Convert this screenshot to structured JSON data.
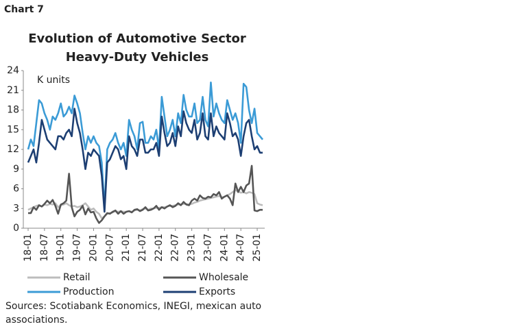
{
  "header": "Chart 7",
  "source": "Sources: Scotiabank Economics, INEGI, mexican auto associations.",
  "chart_data": {
    "type": "line",
    "title": [
      "Evolution of Automotive Sector",
      "Heavy-Duty Vehicles"
    ],
    "annotation": "K units",
    "ylim": [
      0,
      24
    ],
    "yticks": [
      0,
      3,
      6,
      9,
      12,
      15,
      18,
      21,
      24
    ],
    "grid": false,
    "legend": "bottom",
    "categories": [
      "18-01",
      null,
      null,
      null,
      null,
      null,
      "18-07",
      null,
      null,
      null,
      null,
      null,
      "19-01",
      null,
      null,
      null,
      null,
      null,
      "19-07",
      null,
      null,
      null,
      null,
      null,
      "20-01",
      null,
      null,
      null,
      null,
      null,
      "20-07",
      null,
      null,
      null,
      null,
      null,
      "21-01",
      null,
      null,
      null,
      null,
      null,
      "21-07",
      null,
      null,
      null,
      null,
      null,
      "22-01",
      null,
      null,
      null,
      null,
      null,
      "22-07",
      null,
      null,
      null,
      null,
      null,
      "23-01",
      null,
      null,
      null,
      null,
      null,
      "23-07",
      null,
      null,
      null,
      null,
      null,
      "24-01",
      null,
      null,
      null,
      null,
      null,
      "24-07",
      null,
      null,
      null,
      null,
      null,
      "25-01",
      null,
      null
    ],
    "series": [
      {
        "name": "Production",
        "color": "#3b9bd6",
        "values": [
          12,
          13.5,
          12.5,
          16,
          19.5,
          19,
          17.5,
          16.5,
          15,
          17,
          16.5,
          17.5,
          19,
          17,
          17.5,
          18.5,
          17.5,
          20.2,
          19,
          17.5,
          14.5,
          12,
          14,
          13,
          14,
          13,
          12.5,
          10,
          3,
          12,
          13,
          13.5,
          14.5,
          13,
          12,
          13,
          11,
          16.5,
          15,
          14,
          12,
          16,
          16.2,
          13,
          13,
          14,
          13.5,
          15,
          12,
          20,
          17,
          14,
          15,
          16.5,
          14,
          17.5,
          16,
          20.3,
          18,
          17,
          17,
          19,
          16,
          16.5,
          20,
          16.5,
          15.5,
          22.2,
          17,
          19,
          17.5,
          16.5,
          16,
          19.5,
          18,
          16.5,
          17.5,
          16,
          13,
          22,
          21.5,
          18,
          16,
          18.2,
          14.5,
          14,
          13.5
        ]
      },
      {
        "name": "Exports",
        "color": "#1d3f73",
        "values": [
          10,
          11,
          12,
          10,
          13,
          16.5,
          15,
          13.5,
          13,
          12.5,
          12,
          14,
          14,
          13.5,
          14.5,
          15,
          14,
          18.2,
          16,
          14.5,
          12,
          9,
          11.5,
          11,
          12,
          11.5,
          11,
          8,
          2.5,
          10,
          10.5,
          11.5,
          12.5,
          12,
          10.5,
          11,
          9,
          14,
          12.5,
          12,
          11,
          13.5,
          13.5,
          11.5,
          11.5,
          12,
          12,
          13,
          11,
          17,
          14.5,
          12.5,
          13,
          14.5,
          12.5,
          15.5,
          14,
          17.8,
          16,
          15,
          14.5,
          16.5,
          13.5,
          14.5,
          17.5,
          14,
          13.5,
          17.5,
          14,
          15.5,
          14.5,
          14,
          13.5,
          17.5,
          16,
          14,
          14.5,
          13.5,
          11,
          14,
          16,
          16.5,
          14,
          12,
          12.5,
          11.5,
          11.5
        ]
      },
      {
        "name": "Retail",
        "color": "#bcbcbc",
        "values": [
          2.8,
          3,
          3.2,
          3.4,
          3.5,
          3.3,
          3.6,
          3.5,
          3.7,
          3.6,
          3.8,
          3.2,
          3.5,
          3.6,
          3.8,
          3.5,
          3.3,
          3.4,
          3.2,
          3.3,
          3.5,
          3.8,
          3.3,
          2.8,
          3,
          2.5,
          2.2,
          1.5,
          1.8,
          2.2,
          2.3,
          2.4,
          2.6,
          2.5,
          2.6,
          2.5,
          2.5,
          2.6,
          2.5,
          2.7,
          2.8,
          2.7,
          2.9,
          3,
          2.8,
          3,
          3,
          3.1,
          3.1,
          3.2,
          3.2,
          3.3,
          3.4,
          3.4,
          3.5,
          3.6,
          3.6,
          3.7,
          3.7,
          3.6,
          3.7,
          3.9,
          4,
          4.2,
          4.3,
          4.4,
          4.5,
          4.6,
          4.7,
          4.8,
          4.9,
          4.7,
          4.8,
          5,
          5.2,
          5.5,
          5.8,
          5.6,
          5.4,
          5.5,
          5.3,
          5.5,
          5.4,
          5.2,
          3.8,
          3.6,
          3.5
        ]
      },
      {
        "name": "Wholesale",
        "color": "#555555",
        "values": [
          2.3,
          2.3,
          3.2,
          2.8,
          3.5,
          3.3,
          3.7,
          4.2,
          3.8,
          4.3,
          3.4,
          2.2,
          3.6,
          3.8,
          4.2,
          8.3,
          3.2,
          1.8,
          2.5,
          2.8,
          3.4,
          2.1,
          3,
          2.4,
          2.5,
          1.5,
          0.8,
          1.2,
          1.8,
          2.3,
          2.2,
          2.5,
          2.7,
          2.2,
          2.6,
          2.2,
          2.5,
          2.6,
          2.4,
          2.8,
          2.9,
          2.6,
          2.8,
          3.2,
          2.7,
          2.8,
          3,
          3.4,
          2.8,
          3.2,
          3,
          3.3,
          3.5,
          3.2,
          3.4,
          3.8,
          3.5,
          4,
          3.6,
          3.5,
          4.2,
          4.5,
          4.2,
          5,
          4.6,
          4.5,
          4.8,
          4.7,
          5.2,
          5,
          5.5,
          4.5,
          4.8,
          5,
          4.5,
          3.5,
          6.8,
          5.5,
          6.3,
          5.5,
          6.5,
          6.8,
          9.5,
          2.7,
          2.6,
          2.8,
          2.8
        ]
      }
    ],
    "legend_order": [
      2,
      3,
      0,
      1
    ]
  }
}
